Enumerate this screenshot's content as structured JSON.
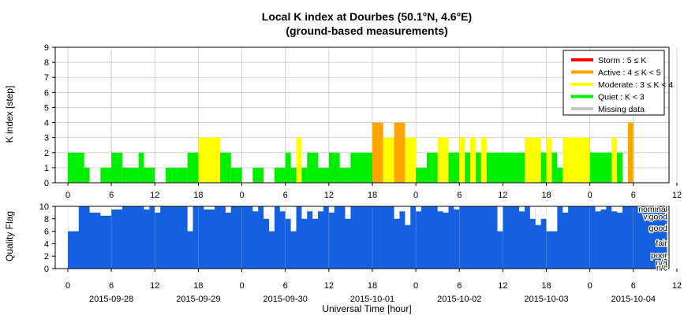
{
  "title": "Local K index at Dourbes (50.1°N, 4.6°E)",
  "subtitle": "(ground-based measurements)",
  "colors": {
    "storm": "#ff0000",
    "active": "#ffa500",
    "moderate": "#ffff00",
    "quiet": "#00ee00",
    "missing": "#c8c8c8",
    "quality": "#1560e0",
    "grid": "#bbbbbb"
  },
  "chart_data": [
    {
      "type": "bar",
      "ylabel": "K index [step]",
      "ylim": [
        0,
        9
      ],
      "yticks": [
        "0",
        "1",
        "2",
        "3",
        "4",
        "5",
        "6",
        "7",
        "8",
        "9"
      ],
      "grid": true,
      "legend_position": "top-right",
      "legend": [
        {
          "label": "Storm : 5 ≤ K",
          "color": "storm"
        },
        {
          "label": "Active : 4 ≤ K < 5",
          "color": "active"
        },
        {
          "label": "Moderate : 3 ≤ K < 4",
          "color": "moderate"
        },
        {
          "label": "Quiet : K < 3",
          "color": "quiet"
        },
        {
          "label": "Missing data",
          "color": "missing"
        }
      ],
      "x_ticks_hours": [
        "0",
        "6",
        "12",
        "18",
        "0",
        "6",
        "12",
        "18",
        "0",
        "6",
        "12",
        "18",
        "0",
        "6",
        "12",
        "18",
        "0",
        "6",
        "12",
        "18",
        "0",
        "6",
        "12",
        "18",
        "0",
        "6",
        "12",
        "18",
        "0"
      ],
      "bars": [
        {
          "start": 0.0,
          "end": 0.75,
          "k": 2
        },
        {
          "start": 0.75,
          "end": 1.0,
          "k": 1
        },
        {
          "start": 1.5,
          "end": 2.0,
          "k": 1
        },
        {
          "start": 2.0,
          "end": 2.5,
          "k": 2
        },
        {
          "start": 2.5,
          "end": 3.25,
          "k": 1
        },
        {
          "start": 3.25,
          "end": 3.5,
          "k": 2
        },
        {
          "start": 3.5,
          "end": 4.0,
          "k": 1
        },
        {
          "start": 4.5,
          "end": 5.5,
          "k": 1
        },
        {
          "start": 5.5,
          "end": 6.0,
          "k": 2
        },
        {
          "start": 6.0,
          "end": 6.5,
          "k": 3
        },
        {
          "start": 6.5,
          "end": 7.0,
          "k": 3
        },
        {
          "start": 7.0,
          "end": 7.5,
          "k": 2
        },
        {
          "start": 7.5,
          "end": 8.0,
          "k": 1
        },
        {
          "start": 8.5,
          "end": 9.0,
          "k": 1
        },
        {
          "start": 9.5,
          "end": 10.0,
          "k": 1
        },
        {
          "start": 10.0,
          "end": 10.25,
          "k": 2
        },
        {
          "start": 10.25,
          "end": 10.5,
          "k": 1
        },
        {
          "start": 10.5,
          "end": 10.75,
          "k": 3
        },
        {
          "start": 10.75,
          "end": 11.0,
          "k": 1
        },
        {
          "start": 11.0,
          "end": 11.5,
          "k": 2
        },
        {
          "start": 11.5,
          "end": 12.0,
          "k": 1
        },
        {
          "start": 12.0,
          "end": 12.5,
          "k": 2
        },
        {
          "start": 12.5,
          "end": 13.0,
          "k": 1
        },
        {
          "start": 13.0,
          "end": 14.0,
          "k": 2
        },
        {
          "start": 14.0,
          "end": 14.5,
          "k": 4
        },
        {
          "start": 14.5,
          "end": 15.0,
          "k": 3
        },
        {
          "start": 15.0,
          "end": 15.5,
          "k": 4
        },
        {
          "start": 15.5,
          "end": 16.0,
          "k": 3
        },
        {
          "start": 16.0,
          "end": 16.5,
          "k": 1
        },
        {
          "start": 16.5,
          "end": 17.0,
          "k": 2
        },
        {
          "start": 17.0,
          "end": 17.5,
          "k": 3
        },
        {
          "start": 17.5,
          "end": 18.0,
          "k": 2
        },
        {
          "start": 18.0,
          "end": 18.25,
          "k": 3
        },
        {
          "start": 18.25,
          "end": 18.5,
          "k": 2
        },
        {
          "start": 18.5,
          "end": 18.75,
          "k": 3
        },
        {
          "start": 18.75,
          "end": 19.0,
          "k": 2
        },
        {
          "start": 19.0,
          "end": 19.25,
          "k": 3
        },
        {
          "start": 19.25,
          "end": 21.0,
          "k": 2
        },
        {
          "start": 21.0,
          "end": 21.75,
          "k": 3
        },
        {
          "start": 21.75,
          "end": 22.0,
          "k": 2
        },
        {
          "start": 22.0,
          "end": 22.25,
          "k": 3
        },
        {
          "start": 22.25,
          "end": 22.5,
          "k": 2
        },
        {
          "start": 22.5,
          "end": 22.75,
          "k": 1
        },
        {
          "start": 22.75,
          "end": 24.0,
          "k": 3
        },
        {
          "start": 24.0,
          "end": 25.0,
          "k": 2
        },
        {
          "start": 25.0,
          "end": 25.25,
          "k": 3
        },
        {
          "start": 25.25,
          "end": 25.5,
          "k": 2
        },
        {
          "start": 25.75,
          "end": 26.0,
          "k": 4
        }
      ]
    },
    {
      "type": "bar",
      "ylabel": "Quality Flag",
      "xlabel": "Universal Time [hour]",
      "ylim": [
        0,
        10
      ],
      "yticks": [
        "0",
        "2",
        "4",
        "6",
        "8",
        "10"
      ],
      "quality_labels": [
        "nominal",
        "v.good",
        "good",
        "fair",
        "poor",
        "n/a",
        "n/c"
      ],
      "date_labels": [
        "2015-09-28",
        "2015-09-29",
        "2015-09-30",
        "2015-10-01",
        "2015-10-02",
        "2015-10-03",
        "2015-10-04"
      ],
      "x_ticks_hours": [
        "0",
        "6",
        "12",
        "18",
        "0",
        "6",
        "12",
        "18",
        "0",
        "6",
        "12",
        "18",
        "0",
        "6",
        "12",
        "18",
        "0",
        "6",
        "12",
        "18",
        "0",
        "6",
        "12",
        "18",
        "0",
        "6",
        "12",
        "18",
        "0"
      ],
      "defects": [
        {
          "start": 0.0,
          "end": 0.5,
          "q": 6
        },
        {
          "start": 1.0,
          "end": 1.5,
          "q": 9
        },
        {
          "start": 1.5,
          "end": 2.0,
          "q": 8.5
        },
        {
          "start": 2.0,
          "end": 2.5,
          "q": 9.5
        },
        {
          "start": 3.5,
          "end": 3.75,
          "q": 9.5
        },
        {
          "start": 4.0,
          "end": 4.25,
          "q": 9
        },
        {
          "start": 5.5,
          "end": 5.75,
          "q": 6
        },
        {
          "start": 6.25,
          "end": 6.75,
          "q": 9.5
        },
        {
          "start": 7.25,
          "end": 7.5,
          "q": 9
        },
        {
          "start": 8.5,
          "end": 8.75,
          "q": 9.2
        },
        {
          "start": 9.0,
          "end": 9.25,
          "q": 8
        },
        {
          "start": 9.25,
          "end": 9.5,
          "q": 6
        },
        {
          "start": 9.75,
          "end": 10.0,
          "q": 9.2
        },
        {
          "start": 10.0,
          "end": 10.25,
          "q": 8
        },
        {
          "start": 10.25,
          "end": 10.5,
          "q": 6
        },
        {
          "start": 10.75,
          "end": 11.0,
          "q": 8
        },
        {
          "start": 11.0,
          "end": 11.25,
          "q": 9.2
        },
        {
          "start": 11.25,
          "end": 11.5,
          "q": 8
        },
        {
          "start": 11.5,
          "end": 11.75,
          "q": 9.2
        },
        {
          "start": 12.0,
          "end": 12.25,
          "q": 9
        },
        {
          "start": 12.75,
          "end": 13.0,
          "q": 8
        },
        {
          "start": 15.0,
          "end": 15.25,
          "q": 8
        },
        {
          "start": 15.25,
          "end": 15.5,
          "q": 9.2
        },
        {
          "start": 15.5,
          "end": 15.75,
          "q": 7
        },
        {
          "start": 16.0,
          "end": 16.25,
          "q": 9.2
        },
        {
          "start": 17.0,
          "end": 17.25,
          "q": 9.2
        },
        {
          "start": 17.25,
          "end": 17.5,
          "q": 9
        },
        {
          "start": 17.75,
          "end": 18.0,
          "q": 9.5
        },
        {
          "start": 19.75,
          "end": 20.0,
          "q": 6
        },
        {
          "start": 20.75,
          "end": 21.0,
          "q": 9.2
        },
        {
          "start": 21.25,
          "end": 21.5,
          "q": 8
        },
        {
          "start": 21.5,
          "end": 21.75,
          "q": 7
        },
        {
          "start": 21.75,
          "end": 22.0,
          "q": 8
        },
        {
          "start": 22.0,
          "end": 22.25,
          "q": 6
        },
        {
          "start": 22.25,
          "end": 22.5,
          "q": 6
        },
        {
          "start": 22.75,
          "end": 23.0,
          "q": 9
        },
        {
          "start": 24.25,
          "end": 24.5,
          "q": 9.2
        },
        {
          "start": 24.5,
          "end": 24.75,
          "q": 9.5
        },
        {
          "start": 25.0,
          "end": 25.25,
          "q": 9.2
        },
        {
          "start": 25.25,
          "end": 25.5,
          "q": 9
        }
      ]
    }
  ]
}
